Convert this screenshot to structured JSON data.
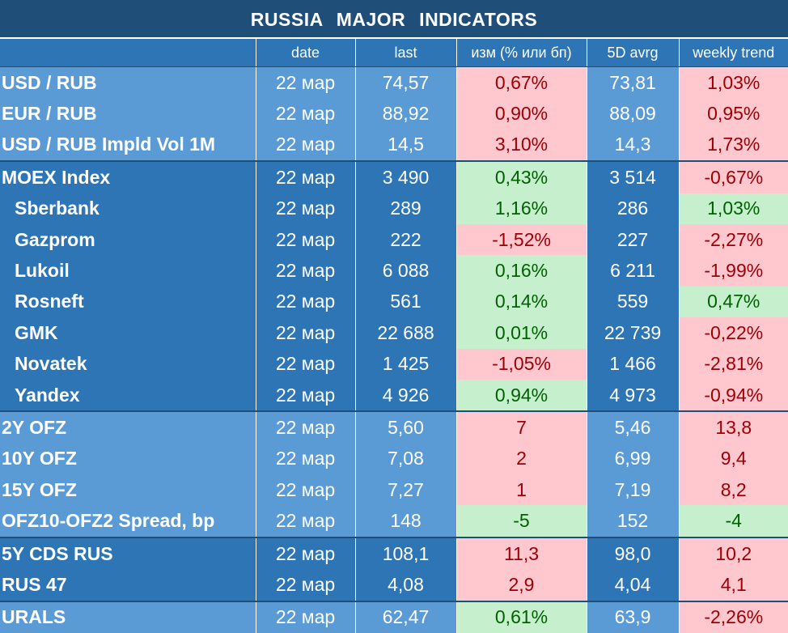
{
  "title": "RUSSIA   MAJOR   INDICATORS",
  "columns": [
    "",
    "date",
    "last",
    "изм (% или бп)",
    "5D avrg",
    "weekly trend"
  ],
  "rows": [
    {
      "name": "USD / RUB",
      "date": "22 мар",
      "last": "74,57",
      "chg": "0,67%",
      "avg": "73,81",
      "trend": "1,03%",
      "chg_color": "red",
      "trend_color": "red",
      "group": "light",
      "indent": false,
      "group_start": false
    },
    {
      "name": "EUR / RUB",
      "date": "22 мар",
      "last": "88,92",
      "chg": "0,90%",
      "avg": "88,09",
      "trend": "0,95%",
      "chg_color": "red",
      "trend_color": "red",
      "group": "light",
      "indent": false,
      "group_start": false
    },
    {
      "name": "USD / RUB Impld Vol 1M",
      "date": "22 мар",
      "last": "14,5",
      "chg": "3,10%",
      "avg": "14,3",
      "trend": "1,73%",
      "chg_color": "red",
      "trend_color": "red",
      "group": "light",
      "indent": false,
      "group_start": false
    },
    {
      "name": "MOEX Index",
      "date": "22 мар",
      "last": "3 490",
      "chg": "0,43%",
      "avg": "3 514",
      "trend": "-0,67%",
      "chg_color": "green",
      "trend_color": "red",
      "group": "dark",
      "indent": false,
      "group_start": true
    },
    {
      "name": "Sberbank",
      "date": "22 мар",
      "last": "289",
      "chg": "1,16%",
      "avg": "286",
      "trend": "1,03%",
      "chg_color": "green",
      "trend_color": "green",
      "group": "dark",
      "indent": true,
      "group_start": false
    },
    {
      "name": "Gazprom",
      "date": "22 мар",
      "last": "222",
      "chg": "-1,52%",
      "avg": "227",
      "trend": "-2,27%",
      "chg_color": "red",
      "trend_color": "red",
      "group": "dark",
      "indent": true,
      "group_start": false
    },
    {
      "name": "Lukoil",
      "date": "22 мар",
      "last": "6 088",
      "chg": "0,16%",
      "avg": "6 211",
      "trend": "-1,99%",
      "chg_color": "green",
      "trend_color": "red",
      "group": "dark",
      "indent": true,
      "group_start": false
    },
    {
      "name": "Rosneft",
      "date": "22 мар",
      "last": "561",
      "chg": "0,14%",
      "avg": "559",
      "trend": "0,47%",
      "chg_color": "green",
      "trend_color": "green",
      "group": "dark",
      "indent": true,
      "group_start": false
    },
    {
      "name": "GMK",
      "date": "22 мар",
      "last": "22 688",
      "chg": "0,01%",
      "avg": "22 739",
      "trend": "-0,22%",
      "chg_color": "green",
      "trend_color": "red",
      "group": "dark",
      "indent": true,
      "group_start": false
    },
    {
      "name": "Novatek",
      "date": "22 мар",
      "last": "1 425",
      "chg": "-1,05%",
      "avg": "1 466",
      "trend": "-2,81%",
      "chg_color": "red",
      "trend_color": "red",
      "group": "dark",
      "indent": true,
      "group_start": false
    },
    {
      "name": "Yandex",
      "date": "22 мар",
      "last": "4 926",
      "chg": "0,94%",
      "avg": "4 973",
      "trend": "-0,94%",
      "chg_color": "green",
      "trend_color": "red",
      "group": "dark",
      "indent": true,
      "group_start": false
    },
    {
      "name": "2Y OFZ",
      "date": "22 мар",
      "last": "5,60",
      "chg": "7",
      "avg": "5,46",
      "trend": "13,8",
      "chg_color": "red",
      "trend_color": "red",
      "group": "light",
      "indent": false,
      "group_start": true
    },
    {
      "name": "10Y OFZ",
      "date": "22 мар",
      "last": "7,08",
      "chg": "2",
      "avg": "6,99",
      "trend": "9,4",
      "chg_color": "red",
      "trend_color": "red",
      "group": "light",
      "indent": false,
      "group_start": false
    },
    {
      "name": "15Y OFZ",
      "date": "22 мар",
      "last": "7,27",
      "chg": "1",
      "avg": "7,19",
      "trend": "8,2",
      "chg_color": "red",
      "trend_color": "red",
      "group": "light",
      "indent": false,
      "group_start": false
    },
    {
      "name": "OFZ10-OFZ2 Spread, bp",
      "date": "22 мар",
      "last": "148",
      "chg": "-5",
      "avg": "152",
      "trend": "-4",
      "chg_color": "green",
      "trend_color": "green",
      "group": "light",
      "indent": false,
      "group_start": false
    },
    {
      "name": "5Y CDS RUS",
      "date": "22 мар",
      "last": "108,1",
      "chg": "11,3",
      "avg": "98,0",
      "trend": "10,2",
      "chg_color": "red",
      "trend_color": "red",
      "group": "dark",
      "indent": false,
      "group_start": true
    },
    {
      "name": "RUS 47",
      "date": "22 мар",
      "last": "4,08",
      "chg": "2,9",
      "avg": "4,04",
      "trend": "4,1",
      "chg_color": "red",
      "trend_color": "red",
      "group": "dark",
      "indent": false,
      "group_start": false
    },
    {
      "name": "URALS",
      "date": "22 мар",
      "last": "62,47",
      "chg": "0,61%",
      "avg": "63,9",
      "trend": "-2,26%",
      "chg_color": "green",
      "trend_color": "red",
      "group": "light",
      "indent": false,
      "group_start": true
    }
  ]
}
